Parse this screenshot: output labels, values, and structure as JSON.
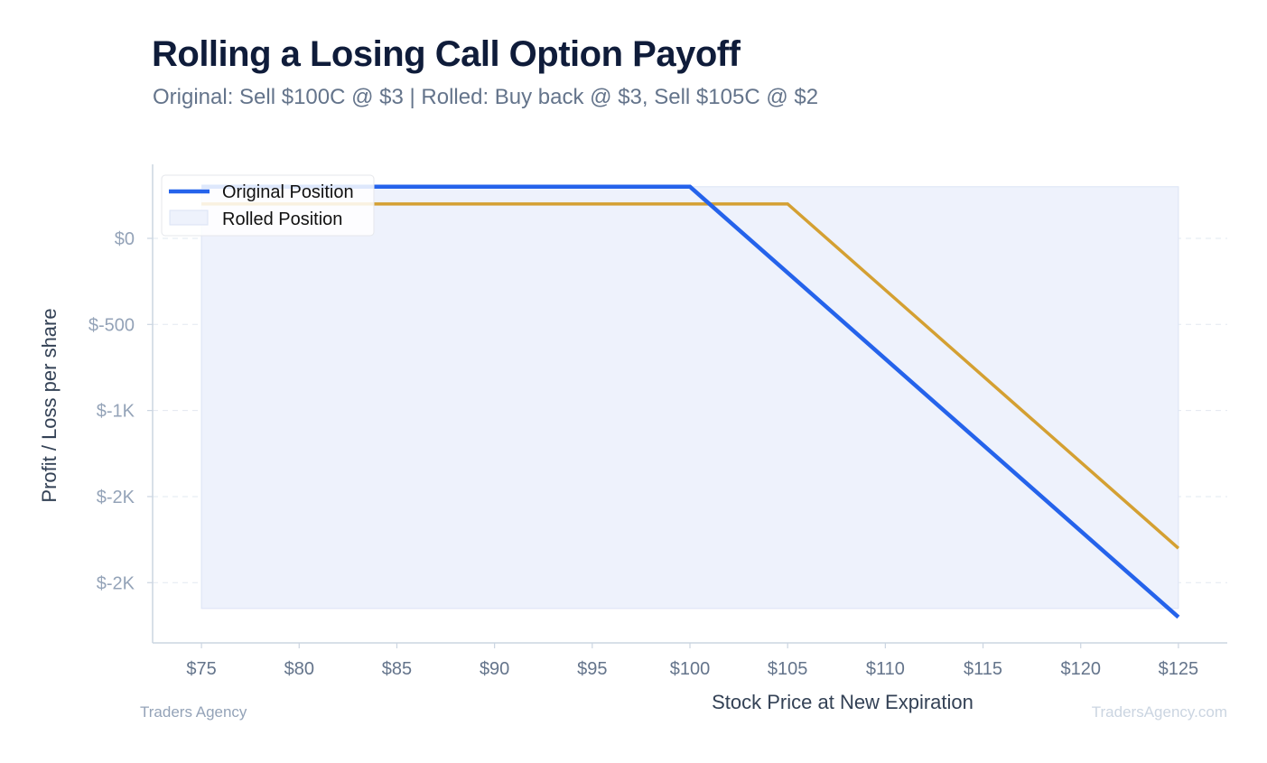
{
  "title": "Rolling a Losing Call Option Payoff",
  "subtitle": "Original: Sell $100C @ $3 | Rolled: Buy back @ $3, Sell $105C @ $2",
  "footer": {
    "left": "Traders Agency",
    "right": "TradersAgency.com"
  },
  "colors": {
    "original": "#2563eb",
    "rolled": "#d4a032",
    "fill": "#eef2fc",
    "grid": "#e2e8f0",
    "axis": "#cbd5e1"
  },
  "chart_data": {
    "type": "line",
    "title": "Rolling a Losing Call Option Payoff",
    "xlabel": "Stock Price at New Expiration",
    "ylabel": "Profit / Loss per share",
    "xlim": [
      72.5,
      127.5
    ],
    "ylim": [
      -2350,
      430
    ],
    "x_ticks": [
      75,
      80,
      85,
      90,
      95,
      100,
      105,
      110,
      115,
      120,
      125
    ],
    "x_tick_labels": [
      "$75",
      "$80",
      "$85",
      "$90",
      "$95",
      "$100",
      "$105",
      "$110",
      "$115",
      "$120",
      "$125"
    ],
    "y_ticks": [
      0,
      -500,
      -1000,
      -1500,
      -2000
    ],
    "y_tick_labels": [
      "$0",
      "$-500",
      "$-1K",
      "$-2K",
      "$-2K"
    ],
    "grid": "horizontal dashed",
    "legend_position": "top-left",
    "legend": [
      "Original Position",
      "Rolled Position"
    ],
    "series": [
      {
        "name": "Original Position",
        "x": [
          75,
          100,
          125
        ],
        "y": [
          300,
          300,
          -2200
        ]
      },
      {
        "name": "Rolled Position",
        "x": [
          75,
          105,
          125
        ],
        "y": [
          200,
          200,
          -1800
        ]
      }
    ],
    "fill_area": {
      "x": [
        75,
        125
      ],
      "top": 300,
      "bottom": -2150
    }
  }
}
